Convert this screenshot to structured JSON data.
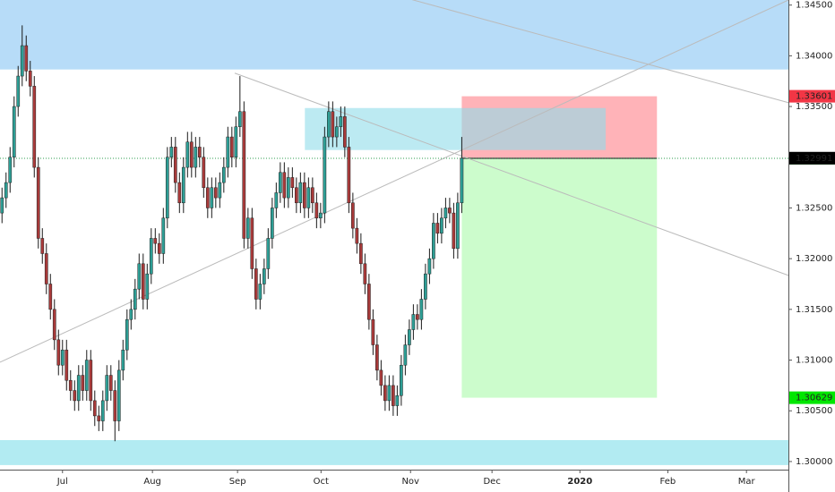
{
  "chart_data": {
    "type": "candlestick",
    "x": [
      0,
      1,
      2,
      3,
      4,
      5,
      6,
      7,
      8,
      9,
      10,
      11,
      12,
      13,
      14,
      15,
      16,
      17,
      18,
      19,
      20,
      21,
      22,
      23,
      24,
      25,
      26,
      27,
      28,
      29,
      30,
      31,
      32,
      33,
      34,
      35,
      36,
      37,
      38,
      39,
      40,
      41,
      42,
      43,
      44,
      45,
      46,
      47,
      48,
      49,
      50,
      51,
      52,
      53,
      54,
      55,
      56,
      57,
      58,
      59,
      60,
      61,
      62,
      63,
      64,
      65,
      66,
      67,
      68,
      69,
      70,
      71,
      72,
      73,
      74,
      75,
      76,
      77,
      78,
      79,
      80,
      81,
      82,
      83,
      84,
      85,
      86,
      87,
      88,
      89,
      90,
      91,
      92,
      93,
      94,
      95,
      96,
      97,
      98,
      99,
      100,
      101,
      102,
      103,
      104,
      105,
      106,
      107,
      108,
      109,
      110,
      111,
      112,
      113,
      114
    ],
    "open": [
      1.3245,
      1.326,
      1.3275,
      1.33,
      1.335,
      1.338,
      1.341,
      1.3385,
      1.337,
      1.329,
      1.322,
      1.3205,
      1.3175,
      1.315,
      1.312,
      1.3095,
      1.311,
      1.308,
      1.307,
      1.306,
      1.3085,
      1.307,
      1.31,
      1.306,
      1.3045,
      1.304,
      1.306,
      1.3085,
      1.307,
      1.304,
      1.309,
      1.311,
      1.314,
      1.315,
      1.317,
      1.3195,
      1.316,
      1.3185,
      1.322,
      1.3215,
      1.3205,
      1.324,
      1.33,
      1.331,
      1.3275,
      1.3255,
      1.329,
      1.3315,
      1.329,
      1.331,
      1.33,
      1.327,
      1.325,
      1.327,
      1.326,
      1.3275,
      1.329,
      1.332,
      1.33,
      1.333,
      1.3345,
      1.322,
      1.324,
      1.319,
      1.316,
      1.3175,
      1.319,
      1.322,
      1.325,
      1.3265,
      1.3285,
      1.326,
      1.328,
      1.327,
      1.3255,
      1.3275,
      1.325,
      1.327,
      1.3255,
      1.324,
      1.3245,
      1.332,
      1.3345,
      1.332,
      1.333,
      1.334,
      1.331,
      1.3255,
      1.323,
      1.3215,
      1.3195,
      1.3175,
      1.314,
      1.3115,
      1.309,
      1.3075,
      1.306,
      1.3075,
      1.3055,
      1.3065,
      1.3095,
      1.3115,
      1.313,
      1.3145,
      1.314,
      1.316,
      1.3185,
      1.32,
      1.3235,
      1.3225,
      1.324,
      1.325,
      1.3245,
      1.321,
      1.3255
    ],
    "high": [
      1.327,
      1.3285,
      1.331,
      1.336,
      1.339,
      1.343,
      1.342,
      1.3395,
      1.338,
      1.33,
      1.323,
      1.3215,
      1.3185,
      1.316,
      1.313,
      1.312,
      1.312,
      1.309,
      1.308,
      1.3095,
      1.3095,
      1.311,
      1.311,
      1.307,
      1.3055,
      1.307,
      1.3095,
      1.3095,
      1.308,
      1.31,
      1.312,
      1.315,
      1.316,
      1.318,
      1.3205,
      1.3205,
      1.3195,
      1.323,
      1.323,
      1.3225,
      1.325,
      1.331,
      1.332,
      1.332,
      1.3285,
      1.33,
      1.3325,
      1.3325,
      1.332,
      1.332,
      1.331,
      1.328,
      1.328,
      1.328,
      1.3285,
      1.33,
      1.333,
      1.333,
      1.334,
      1.338,
      1.3355,
      1.325,
      1.325,
      1.32,
      1.3185,
      1.32,
      1.323,
      1.326,
      1.3275,
      1.3295,
      1.3295,
      1.329,
      1.329,
      1.328,
      1.3285,
      1.3285,
      1.328,
      1.328,
      1.3265,
      1.3255,
      1.333,
      1.3355,
      1.3355,
      1.334,
      1.335,
      1.335,
      1.332,
      1.3265,
      1.324,
      1.3225,
      1.3205,
      1.3185,
      1.315,
      1.3125,
      1.31,
      1.3085,
      1.3085,
      1.3085,
      1.3075,
      1.3105,
      1.3125,
      1.314,
      1.3155,
      1.3155,
      1.317,
      1.3195,
      1.321,
      1.3245,
      1.3245,
      1.325,
      1.326,
      1.326,
      1.3255,
      1.3265,
      1.332
    ],
    "low": [
      1.3235,
      1.325,
      1.3265,
      1.329,
      1.334,
      1.337,
      1.3375,
      1.336,
      1.328,
      1.321,
      1.3195,
      1.3165,
      1.314,
      1.311,
      1.3085,
      1.3085,
      1.307,
      1.306,
      1.305,
      1.305,
      1.306,
      1.306,
      1.305,
      1.3035,
      1.303,
      1.303,
      1.305,
      1.306,
      1.302,
      1.303,
      1.308,
      1.31,
      1.313,
      1.314,
      1.316,
      1.315,
      1.315,
      1.3175,
      1.3205,
      1.3195,
      1.3195,
      1.323,
      1.329,
      1.3265,
      1.3245,
      1.3245,
      1.328,
      1.328,
      1.328,
      1.329,
      1.326,
      1.324,
      1.324,
      1.325,
      1.325,
      1.3265,
      1.328,
      1.329,
      1.329,
      1.332,
      1.321,
      1.321,
      1.318,
      1.315,
      1.315,
      1.3165,
      1.318,
      1.321,
      1.324,
      1.3255,
      1.325,
      1.325,
      1.326,
      1.3245,
      1.3245,
      1.324,
      1.324,
      1.3245,
      1.323,
      1.323,
      1.3235,
      1.331,
      1.331,
      1.331,
      1.332,
      1.33,
      1.3245,
      1.322,
      1.3205,
      1.3185,
      1.3165,
      1.313,
      1.3105,
      1.308,
      1.3065,
      1.305,
      1.305,
      1.3045,
      1.3045,
      1.3055,
      1.3085,
      1.3105,
      1.312,
      1.313,
      1.313,
      1.315,
      1.3175,
      1.319,
      1.3215,
      1.3215,
      1.323,
      1.3235,
      1.32,
      1.32,
      1.3245
    ],
    "close": [
      1.326,
      1.3275,
      1.33,
      1.335,
      1.338,
      1.341,
      1.3385,
      1.337,
      1.329,
      1.322,
      1.3205,
      1.3175,
      1.315,
      1.312,
      1.3095,
      1.311,
      1.308,
      1.307,
      1.306,
      1.3085,
      1.307,
      1.31,
      1.306,
      1.3045,
      1.304,
      1.306,
      1.3085,
      1.307,
      1.304,
      1.309,
      1.311,
      1.314,
      1.315,
      1.317,
      1.3195,
      1.316,
      1.3185,
      1.322,
      1.3215,
      1.3205,
      1.324,
      1.33,
      1.331,
      1.3275,
      1.3255,
      1.329,
      1.3315,
      1.329,
      1.331,
      1.33,
      1.327,
      1.325,
      1.327,
      1.326,
      1.3275,
      1.329,
      1.332,
      1.33,
      1.333,
      1.3345,
      1.322,
      1.324,
      1.319,
      1.316,
      1.3175,
      1.319,
      1.322,
      1.325,
      1.3265,
      1.3285,
      1.326,
      1.328,
      1.327,
      1.3255,
      1.3275,
      1.325,
      1.327,
      1.3255,
      1.324,
      1.3245,
      1.332,
      1.3345,
      1.332,
      1.333,
      1.334,
      1.331,
      1.3255,
      1.323,
      1.3215,
      1.3195,
      1.3175,
      1.314,
      1.3115,
      1.309,
      1.3075,
      1.306,
      1.3075,
      1.3055,
      1.3065,
      1.3095,
      1.3115,
      1.313,
      1.3145,
      1.314,
      1.316,
      1.3185,
      1.32,
      1.3235,
      1.3225,
      1.324,
      1.325,
      1.3245,
      1.321,
      1.3255,
      1.3299
    ],
    "up_color": "#2e9e95",
    "down_color": "#a83a3a",
    "wick_color": "#1a1a1a",
    "xlim": [
      -0.5,
      195
    ],
    "xticks": [
      {
        "value": 15,
        "label": "Jul"
      },
      {
        "value": 37.3,
        "label": "Aug"
      },
      {
        "value": 58.4,
        "label": "Sep"
      },
      {
        "value": 79.1,
        "label": "Oct"
      },
      {
        "value": 101.3,
        "label": "Nov"
      },
      {
        "value": 121.5,
        "label": "Dec"
      },
      {
        "value": 143.3,
        "label": "2020"
      },
      {
        "value": 165.1,
        "label": "Feb"
      },
      {
        "value": 184.6,
        "label": "Mar"
      }
    ],
    "ylim": [
      1.2992,
      1.3455
    ],
    "yticks": [
      {
        "value": 1.345,
        "label": "1.34500"
      },
      {
        "value": 1.34,
        "label": "1.34000"
      },
      {
        "value": 1.335,
        "label": "1.33500"
      },
      {
        "value": 1.33,
        "label": "1.33000"
      },
      {
        "value": 1.325,
        "label": "1.32500"
      },
      {
        "value": 1.32,
        "label": "1.32000"
      },
      {
        "value": 1.315,
        "label": "1.31500"
      },
      {
        "value": 1.31,
        "label": "1.31000"
      },
      {
        "value": 1.305,
        "label": "1.30500"
      },
      {
        "value": 1.3,
        "label": "1.30000"
      }
    ],
    "zones": [
      {
        "x": [
          -0.5,
          195
        ],
        "y": [
          1.33865,
          1.3455
        ],
        "color": "#b7dcf8"
      },
      {
        "x": [
          -0.5,
          195
        ],
        "y": [
          1.29965,
          1.30211
        ],
        "color": "#b2ebf2"
      }
    ],
    "position": {
      "x": [
        114,
        162.4
      ],
      "entry": 1.32989,
      "stop": 1.33601,
      "target": 1.30629,
      "loss_color": "#ffb3b8",
      "profit_color": "#ccfccc"
    },
    "box": {
      "x": [
        75.1,
        149.7
      ],
      "y": [
        1.33071,
        1.33485
      ],
      "color": "#8fdcea"
    },
    "lines": [
      {
        "x": [
          -0.5,
          195
        ],
        "y": [
          1.30979,
          1.3455
        ]
      },
      {
        "x": [
          57.7,
          195
        ],
        "y": [
          1.33829,
          1.31835
        ]
      },
      {
        "x": [
          101.7,
          195
        ],
        "y": [
          1.34553,
          1.33538
        ]
      }
    ],
    "price_line": 1.32989,
    "price_labels": [
      {
        "value": 1.33601,
        "color": "#f23645",
        "text_color": "#ffffff"
      },
      {
        "value": 1.32989,
        "color": "#4caf50",
        "text_color": "#ffffff"
      },
      {
        "value": 1.32991,
        "color": "#000000",
        "text_color": "#ffffff"
      },
      {
        "value": 1.30629,
        "color": "#00e600",
        "text_color": "#000000"
      }
    ]
  }
}
